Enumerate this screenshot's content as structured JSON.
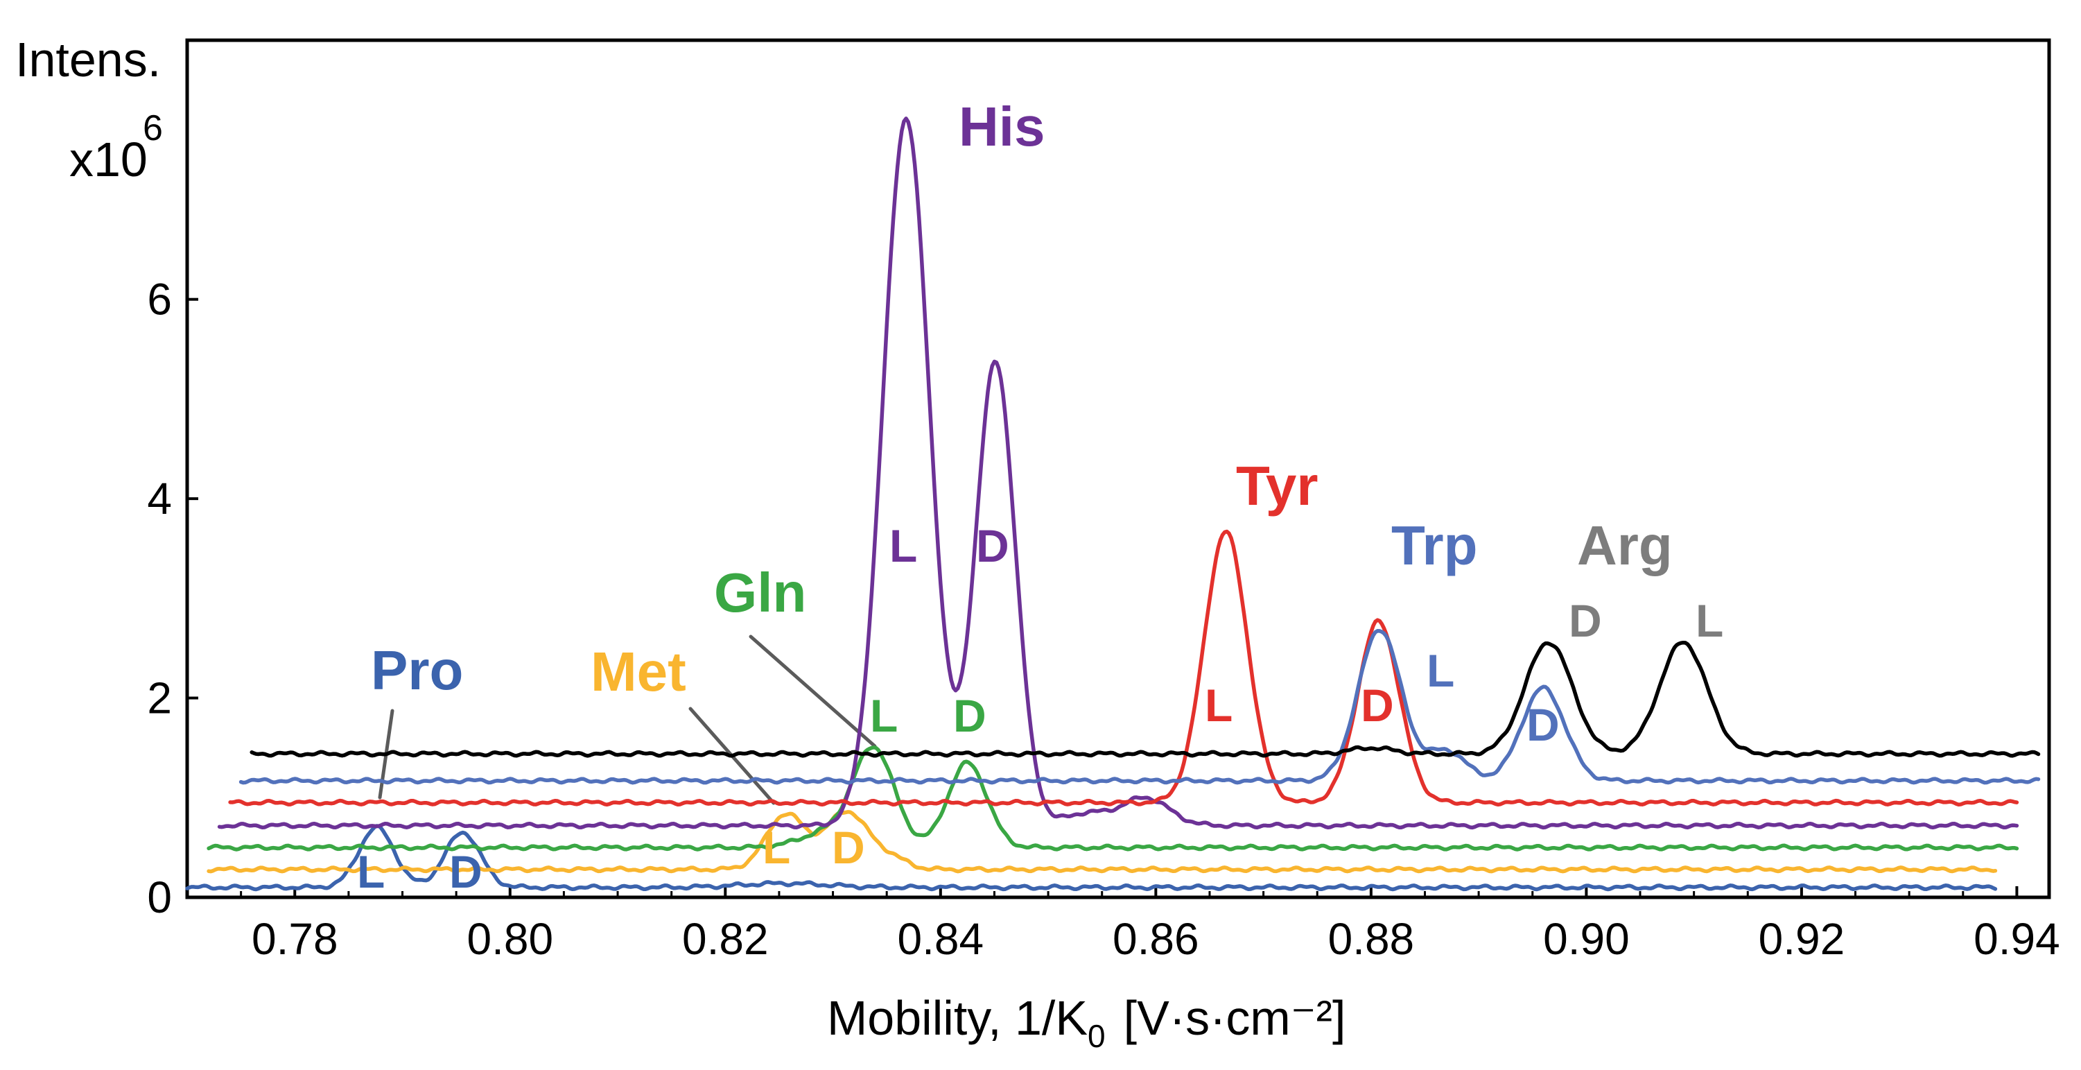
{
  "chart_data": {
    "type": "line",
    "title": "",
    "xlabel": "Mobility, 1/K",
    "xlabel_sub": "0",
    "xlabel_units": "[V·s·cm⁻²]",
    "ylabel_line1": "Intens.",
    "ylabel_line2": "x10",
    "ylabel_exp": "6",
    "xlim": [
      0.77,
      0.943
    ],
    "ylim": [
      0,
      8.6
    ],
    "x_ticks": [
      0.78,
      0.8,
      0.82,
      0.84,
      0.86,
      0.88,
      0.9,
      0.92,
      0.94
    ],
    "x_tick_labels": [
      "0.78",
      "0.80",
      "0.82",
      "0.84",
      "0.86",
      "0.88",
      "0.90",
      "0.92",
      "0.94"
    ],
    "y_ticks": [
      0,
      2,
      4,
      6
    ],
    "y_tick_labels": [
      "0",
      "2",
      "4",
      "6"
    ],
    "series": [
      {
        "name": "Pro",
        "color": "#3b63ad",
        "x_start": 0.77,
        "x_end": 0.938,
        "baseline": 0.1,
        "peaks": [
          {
            "mu": 0.7876,
            "sigma": 0.00165,
            "height": 0.6,
            "label": "L"
          },
          {
            "mu": 0.7956,
            "sigma": 0.00165,
            "height": 0.55,
            "label": "D"
          },
          {
            "mu": 0.8255,
            "sigma": 0.004,
            "height": 0.04
          }
        ]
      },
      {
        "name": "Met",
        "color": "#f9b52f",
        "x_start": 0.772,
        "x_end": 0.938,
        "baseline": 0.28,
        "peaks": [
          {
            "mu": 0.8256,
            "sigma": 0.0018,
            "height": 0.55,
            "label": "L"
          },
          {
            "mu": 0.8313,
            "sigma": 0.002,
            "height": 0.58,
            "label": "D"
          },
          {
            "mu": 0.8355,
            "sigma": 0.0015,
            "height": 0.1
          }
        ]
      },
      {
        "name": "Gln",
        "color": "#3aa744",
        "x_start": 0.772,
        "x_end": 0.94,
        "baseline": 0.5,
        "peaks": [
          {
            "mu": 0.8338,
            "sigma": 0.0019,
            "height": 0.98,
            "label": "L"
          },
          {
            "mu": 0.8425,
            "sigma": 0.0018,
            "height": 0.85,
            "label": "D"
          },
          {
            "mu": 0.8295,
            "sigma": 0.0025,
            "height": 0.15
          }
        ]
      },
      {
        "name": "His",
        "color": "#6c3296",
        "x_start": 0.773,
        "x_end": 0.94,
        "baseline": 0.72,
        "peaks": [
          {
            "mu": 0.8368,
            "sigma": 0.00215,
            "height": 7.1,
            "label": "L"
          },
          {
            "mu": 0.8451,
            "sigma": 0.00185,
            "height": 4.65,
            "label": "D"
          },
          {
            "mu": 0.859,
            "sigma": 0.0022,
            "height": 0.28
          },
          {
            "mu": 0.8535,
            "sigma": 0.002,
            "height": 0.12
          }
        ]
      },
      {
        "name": "Tyr",
        "color": "#e3312c",
        "x_start": 0.774,
        "x_end": 0.94,
        "baseline": 0.95,
        "peaks": [
          {
            "mu": 0.8665,
            "sigma": 0.002,
            "height": 2.72,
            "label": "L"
          },
          {
            "mu": 0.8807,
            "sigma": 0.00195,
            "height": 1.82,
            "label": "D"
          }
        ]
      },
      {
        "name": "Trp",
        "color": "#5271bb",
        "x_start": 0.775,
        "x_end": 0.942,
        "baseline": 1.17,
        "peaks": [
          {
            "mu": 0.8808,
            "sigma": 0.002,
            "height": 1.52,
            "label": "L"
          },
          {
            "mu": 0.887,
            "sigma": 0.0018,
            "height": 0.3
          },
          {
            "mu": 0.896,
            "sigma": 0.002,
            "height": 0.93,
            "label": "D"
          }
        ]
      },
      {
        "name": "Arg",
        "color": "#000000",
        "label_color": "#7d7d7d",
        "x_start": 0.776,
        "x_end": 0.942,
        "baseline": 1.44,
        "peaks": [
          {
            "mu": 0.8965,
            "sigma": 0.0022,
            "height": 1.12,
            "label": "D"
          },
          {
            "mu": 0.909,
            "sigma": 0.0022,
            "height": 1.12,
            "label": "L"
          },
          {
            "mu": 0.88,
            "sigma": 0.002,
            "height": 0.06
          }
        ]
      }
    ],
    "series_names": [
      "Pro",
      "Met",
      "Gln",
      "His",
      "Tyr",
      "Trp",
      "Arg"
    ],
    "peak_labels": {
      "pro_l": "L",
      "pro_d": "D",
      "met_l": "L",
      "met_d": "D",
      "gln_l": "L",
      "gln_d": "D",
      "his_l": "L",
      "his_d": "D",
      "tyr_l": "L",
      "tyr_d": "D",
      "trp_l": "L",
      "trp_d": "D",
      "arg_d": "D",
      "arg_l": "L"
    },
    "colors": {
      "pro": "#3b63ad",
      "met": "#f9b52f",
      "gln": "#3aa744",
      "his": "#6c3296",
      "tyr": "#e3312c",
      "trp": "#5271bb",
      "arg_label": "#7d7d7d",
      "leader": "#5b5b5b"
    }
  }
}
